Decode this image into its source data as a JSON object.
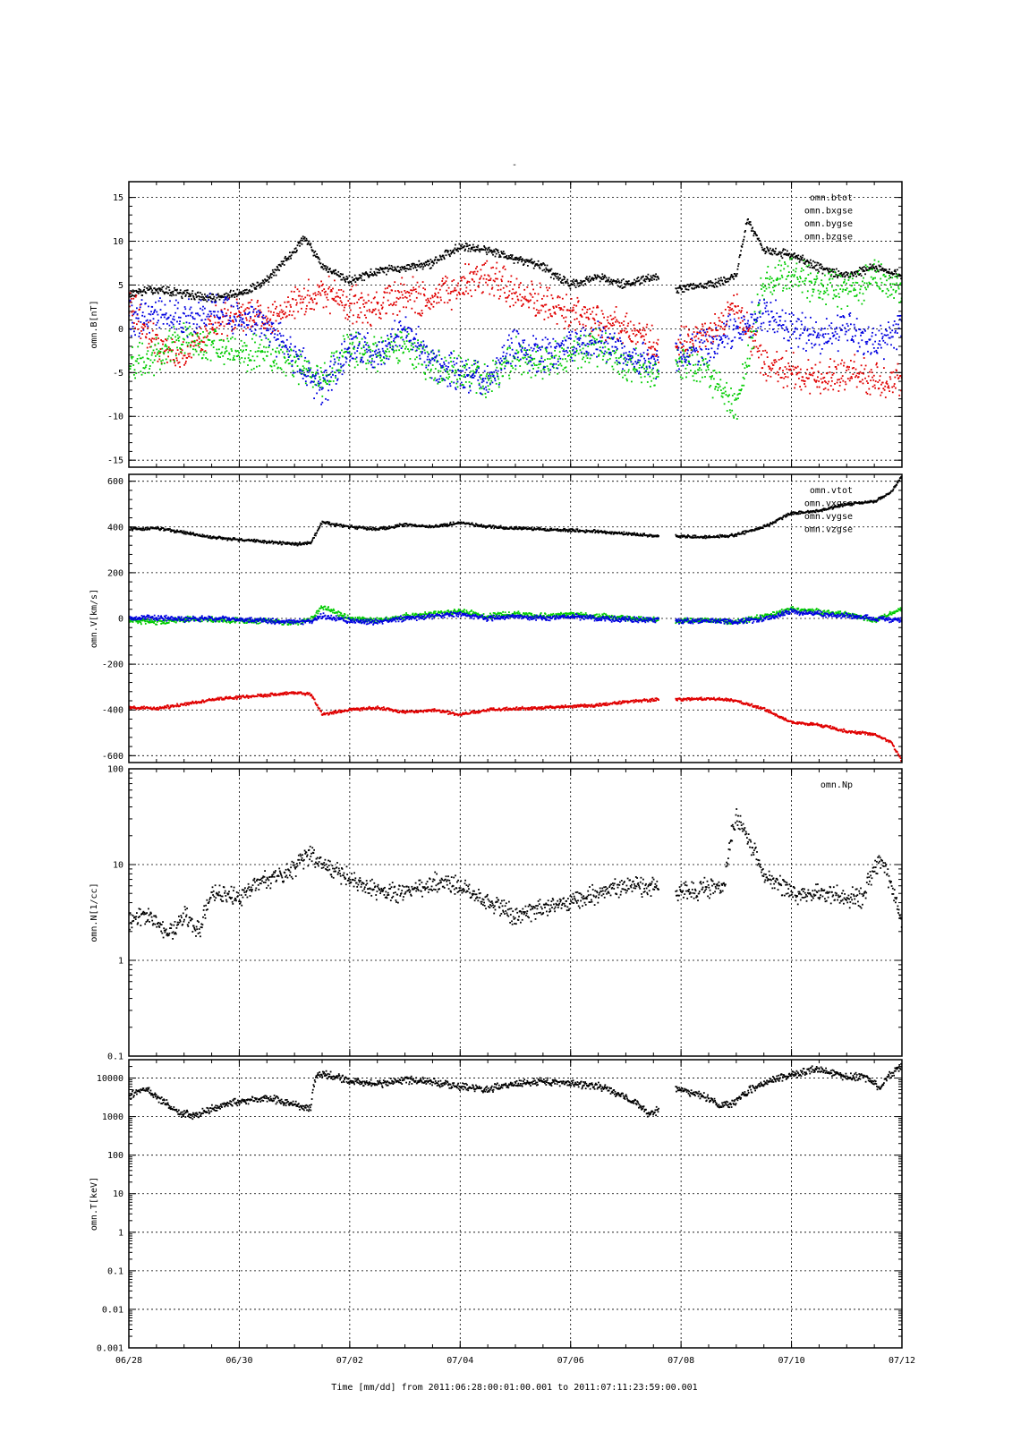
{
  "figure": {
    "title": "-",
    "time_axis": {
      "title": "Time [mm/dd]  from 2011:06:28:00:01:00.001  to  2011:07:11:23:59:00.001",
      "start_day": 0,
      "end_day": 14,
      "tick_labels": [
        "06/28",
        "06/30",
        "07/02",
        "07/04",
        "07/06",
        "07/08",
        "07/10",
        "07/12"
      ],
      "tick_days": [
        0,
        2,
        4,
        6,
        8,
        10,
        12,
        14
      ]
    }
  },
  "chart_data": [
    {
      "type": "scatter",
      "ylabel": "omn.B[nT]",
      "yscale": "linear",
      "ylim": [
        -15,
        15
      ],
      "yticks": [
        -15,
        -10,
        -5,
        0,
        5,
        10,
        15
      ],
      "ytick_labels": [
        "-15",
        "-10",
        "-5",
        "0",
        "5",
        "10",
        "15"
      ],
      "grid": true,
      "legend_position": "top-right",
      "data_gap": [
        9.6,
        9.9
      ],
      "series": [
        {
          "name": "omn.btot",
          "color": "#000000",
          "x": [
            0,
            0.5,
            1,
            1.5,
            2,
            2.5,
            3,
            3.2,
            3.5,
            4,
            4.5,
            5,
            5.5,
            6,
            6.5,
            7,
            7.5,
            8,
            8.5,
            9,
            9.6,
            9.9,
            10.5,
            11,
            11.2,
            11.5,
            12,
            12.5,
            13,
            13.5,
            14
          ],
          "y": [
            4,
            4.5,
            4,
            3.5,
            4,
            5.5,
            9,
            10.5,
            7,
            5.5,
            6.5,
            7,
            7.5,
            9.5,
            9,
            8,
            7,
            5,
            6,
            5,
            6,
            4.5,
            5,
            6,
            12.5,
            9,
            8.5,
            7,
            6,
            7,
            6
          ]
        },
        {
          "name": "omn.bxgse",
          "color": "#e00000",
          "x": [
            0,
            0.5,
            1,
            1.5,
            2,
            2.5,
            3,
            3.5,
            4,
            4.5,
            5,
            5.5,
            6,
            6.5,
            7,
            7.5,
            8,
            8.5,
            9,
            9.6,
            9.9,
            10.5,
            11,
            11.5,
            12,
            12.5,
            13,
            13.5,
            14
          ],
          "y": [
            3,
            -2,
            -3,
            0,
            2,
            1,
            3,
            4,
            3,
            2,
            4,
            3,
            5,
            6,
            4,
            3,
            2,
            1,
            0,
            -2,
            -2,
            -1,
            3,
            -4,
            -5,
            -5.5,
            -5,
            -6,
            -6
          ]
        },
        {
          "name": "omn.bygse",
          "color": "#00cc00",
          "x": [
            0,
            0.5,
            1,
            1.5,
            2,
            2.5,
            3,
            3.5,
            4,
            4.5,
            5,
            5.5,
            6,
            6.5,
            7,
            7.5,
            8,
            8.5,
            9,
            9.6,
            9.9,
            10.5,
            11,
            11.5,
            12,
            12.5,
            13,
            13.5,
            14
          ],
          "y": [
            -4,
            -3,
            -1,
            -2,
            -2.5,
            -3,
            -4,
            -6,
            -2,
            -3,
            -2,
            -4,
            -5,
            -6,
            -3,
            -4,
            -3,
            -2,
            -4,
            -5,
            -3,
            -5,
            -9,
            5,
            6,
            5,
            4,
            6,
            4
          ]
        },
        {
          "name": "omn.bzgse",
          "color": "#0000e0",
          "x": [
            0,
            0.5,
            1,
            1.5,
            2,
            2.5,
            3,
            3.5,
            4,
            4.5,
            5,
            5.5,
            6,
            6.5,
            7,
            7.5,
            8,
            8.5,
            9,
            9.6,
            9.9,
            10.5,
            11,
            11.5,
            12,
            12.5,
            13,
            13.5,
            14
          ],
          "y": [
            1,
            2,
            1,
            2,
            1,
            0,
            -3,
            -7,
            -2,
            -3,
            0,
            -4,
            -5,
            -6,
            -2,
            -3,
            -2,
            -1,
            -3,
            -4,
            -3,
            -2,
            0,
            2,
            0,
            -1,
            0,
            -2,
            0
          ]
        }
      ]
    },
    {
      "type": "scatter",
      "ylabel": "omn.V[km/s]",
      "yscale": "linear",
      "ylim": [
        -630,
        630
      ],
      "yticks": [
        -600,
        -400,
        -200,
        0,
        200,
        400,
        600
      ],
      "ytick_labels": [
        "-600",
        "-400",
        "-200",
        "0",
        "200",
        "400",
        "600"
      ],
      "grid": true,
      "legend_position": "top-right",
      "data_gap": [
        9.6,
        9.9
      ],
      "series": [
        {
          "name": "omn.vtot",
          "color": "#000000",
          "x": [
            0,
            0.5,
            1,
            1.5,
            2,
            2.5,
            3,
            3.3,
            3.5,
            4,
            4.5,
            5,
            5.5,
            6,
            6.5,
            7,
            7.5,
            8,
            8.5,
            9,
            9.6,
            9.9,
            10.5,
            11,
            11.5,
            12,
            12.5,
            13,
            13.5,
            13.8,
            14
          ],
          "y": [
            390,
            395,
            375,
            355,
            345,
            335,
            325,
            330,
            420,
            400,
            390,
            410,
            400,
            420,
            400,
            395,
            390,
            385,
            380,
            370,
            360,
            360,
            355,
            365,
            400,
            460,
            470,
            500,
            510,
            550,
            620
          ]
        },
        {
          "name": "omn.vxgse",
          "color": "#e00000",
          "x": [
            0,
            0.5,
            1,
            1.5,
            2,
            2.5,
            3,
            3.3,
            3.5,
            4,
            4.5,
            5,
            5.5,
            6,
            6.5,
            7,
            7.5,
            8,
            8.5,
            9,
            9.6,
            9.9,
            10.5,
            11,
            11.5,
            12,
            12.5,
            13,
            13.5,
            13.8,
            14
          ],
          "y": [
            -390,
            -395,
            -375,
            -355,
            -345,
            -335,
            -325,
            -330,
            -420,
            -400,
            -390,
            -410,
            -400,
            -420,
            -400,
            -395,
            -390,
            -385,
            -380,
            -365,
            -355,
            -355,
            -350,
            -360,
            -395,
            -455,
            -465,
            -495,
            -505,
            -540,
            -625
          ]
        },
        {
          "name": "omn.vygse",
          "color": "#00cc00",
          "x": [
            0,
            0.5,
            1,
            1.5,
            2,
            2.5,
            3,
            3.3,
            3.5,
            4,
            4.5,
            5,
            5.5,
            6,
            6.5,
            7,
            7.5,
            8,
            8.5,
            9,
            9.6,
            9.9,
            10.5,
            11,
            11.5,
            12,
            12.5,
            13,
            13.5,
            14
          ],
          "y": [
            -10,
            -15,
            -5,
            -5,
            -10,
            -10,
            -20,
            -5,
            50,
            0,
            -10,
            10,
            20,
            30,
            10,
            20,
            10,
            20,
            10,
            0,
            -5,
            -10,
            -10,
            -15,
            10,
            40,
            30,
            20,
            -10,
            40
          ]
        },
        {
          "name": "omn.vzgse",
          "color": "#0000e0",
          "x": [
            0,
            0.5,
            1,
            1.5,
            2,
            2.5,
            3,
            3.3,
            3.5,
            4,
            4.5,
            5,
            5.5,
            6,
            6.5,
            7,
            7.5,
            8,
            8.5,
            9,
            9.6,
            9.9,
            10.5,
            11,
            11.5,
            12,
            12.5,
            13,
            13.5,
            14
          ],
          "y": [
            0,
            5,
            -5,
            0,
            -5,
            -10,
            -15,
            -10,
            10,
            -10,
            -15,
            0,
            10,
            20,
            0,
            10,
            0,
            10,
            0,
            -5,
            -5,
            -10,
            -10,
            -15,
            0,
            30,
            20,
            10,
            0,
            -10
          ]
        }
      ]
    },
    {
      "type": "scatter",
      "ylabel": "omn.N[1/cc]",
      "yscale": "log",
      "ylim": [
        0.1,
        100
      ],
      "yticks": [
        0.1,
        1,
        10,
        100
      ],
      "ytick_labels": [
        "0.1",
        "1",
        "10",
        "100"
      ],
      "grid": true,
      "legend_position": "top-right",
      "data_gap": [
        9.6,
        9.9
      ],
      "series": [
        {
          "name": "omn.Np",
          "color": "#000000",
          "x": [
            0,
            0.3,
            0.6,
            0.8,
            1,
            1.3,
            1.5,
            2,
            2.5,
            3,
            3.3,
            3.5,
            4,
            4.5,
            5,
            5.5,
            6,
            6.5,
            7,
            7.5,
            8,
            8.5,
            9,
            9.6,
            9.9,
            10.3,
            10.8,
            11,
            11.3,
            11.5,
            12,
            12.5,
            13,
            13.3,
            13.6,
            13.8,
            14
          ],
          "y": [
            2.5,
            3,
            2.2,
            2.0,
            3,
            2,
            5,
            4.5,
            7,
            9,
            13,
            10,
            7,
            5.5,
            5,
            6.5,
            6,
            4,
            3,
            3.5,
            4,
            5,
            6,
            6,
            5,
            5.5,
            6,
            30,
            15,
            8,
            5,
            5,
            4.5,
            4.5,
            11,
            6,
            2
          ]
        }
      ]
    },
    {
      "type": "scatter",
      "ylabel": "omn.T[keV]",
      "yscale": "log",
      "ylim": [
        0.001,
        30000
      ],
      "yticks": [
        0.001,
        0.01,
        0.1,
        1,
        10,
        100,
        1000,
        10000
      ],
      "ytick_labels": [
        "0.001",
        "0.01",
        "0.1",
        "1",
        "10",
        "100",
        "1000",
        "10000"
      ],
      "grid": true,
      "legend_position": "none",
      "data_gap": [
        9.6,
        9.9
      ],
      "series": [
        {
          "name": "",
          "color": "#000000",
          "x": [
            0,
            0.3,
            0.6,
            0.9,
            1.2,
            1.5,
            2,
            2.5,
            3,
            3.3,
            3.4,
            3.7,
            4,
            4.5,
            5,
            5.5,
            6,
            6.5,
            7,
            7.5,
            8,
            8.5,
            9,
            9.4,
            9.6,
            9.9,
            10.3,
            10.7,
            11,
            11.5,
            12,
            12.5,
            13,
            13.3,
            13.6,
            14
          ],
          "y": [
            3500,
            5000,
            2500,
            1200,
            1000,
            1600,
            2500,
            3000,
            2000,
            1500,
            12000,
            12000,
            8000,
            7000,
            9000,
            8000,
            6000,
            5000,
            7000,
            8000,
            7000,
            6000,
            3000,
            1200,
            1500,
            5000,
            4000,
            1800,
            2500,
            7000,
            12000,
            17000,
            10000,
            11000,
            5000,
            20000
          ]
        }
      ]
    }
  ]
}
